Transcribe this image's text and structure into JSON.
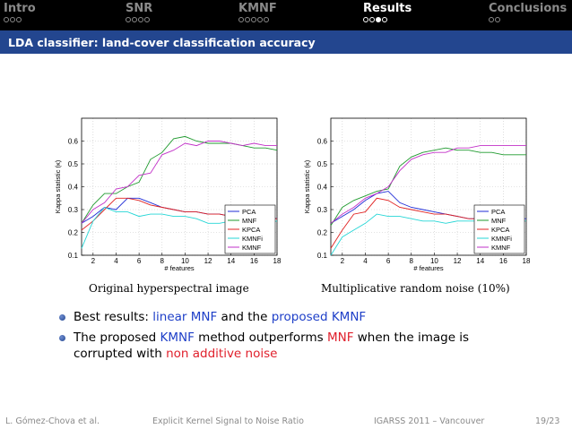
{
  "nav": {
    "sections": [
      {
        "label": "Intro",
        "dots": 3,
        "filled": -1,
        "active": false
      },
      {
        "label": "SNR",
        "dots": 4,
        "filled": -1,
        "active": false
      },
      {
        "label": "KMNF",
        "dots": 5,
        "filled": -1,
        "active": false
      },
      {
        "label": "Results",
        "dots": 4,
        "filled": 2,
        "active": true
      },
      {
        "label": "Conclusions",
        "dots": 2,
        "filled": -1,
        "active": false
      }
    ]
  },
  "slide": {
    "title": "LDA classifier: land-cover classification accuracy"
  },
  "colors": {
    "PCA": "#1f2bd6",
    "MNF": "#1f9a2e",
    "KPCA": "#e02020",
    "KMNFi": "#25d6d6",
    "KMNF": "#c231c8"
  },
  "chart_data": [
    {
      "type": "line",
      "ylabel": "Kappa statistic (κ)",
      "xlabel": "# features",
      "xlim": [
        1,
        18
      ],
      "ylim": [
        0.1,
        0.7
      ],
      "xticks": [
        2,
        4,
        6,
        8,
        10,
        12,
        14,
        16,
        18
      ],
      "yticks": [
        0.1,
        0.2,
        0.3,
        0.4,
        0.5,
        0.6
      ],
      "grid": true,
      "legend_position": "bottom-right",
      "x": [
        1,
        2,
        3,
        4,
        5,
        6,
        7,
        8,
        9,
        10,
        11,
        12,
        13,
        14,
        15,
        16,
        17,
        18
      ],
      "series": [
        {
          "name": "PCA",
          "values": [
            0.24,
            0.27,
            0.31,
            0.3,
            0.35,
            0.35,
            0.33,
            0.31,
            0.3,
            0.29,
            0.29,
            0.28,
            0.28,
            0.27,
            0.27,
            0.27,
            0.27,
            0.26
          ]
        },
        {
          "name": "MNF",
          "values": [
            0.24,
            0.32,
            0.37,
            0.37,
            0.4,
            0.42,
            0.52,
            0.55,
            0.61,
            0.62,
            0.6,
            0.59,
            0.59,
            0.59,
            0.58,
            0.57,
            0.57,
            0.56
          ]
        },
        {
          "name": "KPCA",
          "values": [
            0.21,
            0.25,
            0.3,
            0.35,
            0.35,
            0.34,
            0.32,
            0.31,
            0.3,
            0.29,
            0.29,
            0.28,
            0.28,
            0.27,
            0.27,
            0.27,
            0.26,
            0.26
          ]
        },
        {
          "name": "KMNFi",
          "values": [
            0.13,
            0.25,
            0.31,
            0.29,
            0.29,
            0.27,
            0.28,
            0.28,
            0.27,
            0.27,
            0.26,
            0.24,
            0.24,
            0.25,
            0.25,
            0.25,
            0.24,
            0.25
          ]
        },
        {
          "name": "KMNF",
          "values": [
            0.24,
            0.3,
            0.33,
            0.39,
            0.4,
            0.45,
            0.46,
            0.54,
            0.56,
            0.59,
            0.58,
            0.6,
            0.6,
            0.59,
            0.58,
            0.59,
            0.58,
            0.58
          ]
        }
      ]
    },
    {
      "type": "line",
      "ylabel": "Kappa statistic (κ)",
      "xlabel": "# features",
      "xlim": [
        1,
        18
      ],
      "ylim": [
        0.1,
        0.7
      ],
      "xticks": [
        2,
        4,
        6,
        8,
        10,
        12,
        14,
        16,
        18
      ],
      "yticks": [
        0.1,
        0.2,
        0.3,
        0.4,
        0.5,
        0.6
      ],
      "grid": true,
      "legend_position": "bottom-right",
      "x": [
        1,
        2,
        3,
        4,
        5,
        6,
        7,
        8,
        9,
        10,
        11,
        12,
        13,
        14,
        15,
        16,
        17,
        18
      ],
      "series": [
        {
          "name": "PCA",
          "values": [
            0.24,
            0.27,
            0.3,
            0.34,
            0.37,
            0.38,
            0.33,
            0.31,
            0.3,
            0.29,
            0.28,
            0.27,
            0.26,
            0.26,
            0.26,
            0.26,
            0.26,
            0.26
          ]
        },
        {
          "name": "MNF",
          "values": [
            0.23,
            0.31,
            0.34,
            0.36,
            0.38,
            0.39,
            0.49,
            0.53,
            0.55,
            0.56,
            0.57,
            0.56,
            0.56,
            0.55,
            0.55,
            0.54,
            0.54,
            0.54
          ]
        },
        {
          "name": "KPCA",
          "values": [
            0.13,
            0.21,
            0.28,
            0.29,
            0.35,
            0.34,
            0.31,
            0.3,
            0.29,
            0.28,
            0.28,
            0.27,
            0.26,
            0.26,
            0.26,
            0.25,
            0.25,
            0.25
          ]
        },
        {
          "name": "KMNFi",
          "values": [
            0.1,
            0.18,
            0.21,
            0.24,
            0.28,
            0.27,
            0.27,
            0.26,
            0.25,
            0.25,
            0.24,
            0.25,
            0.25,
            0.25,
            0.25,
            0.25,
            0.25,
            0.25
          ]
        },
        {
          "name": "KMNF",
          "values": [
            0.24,
            0.28,
            0.31,
            0.35,
            0.37,
            0.4,
            0.47,
            0.52,
            0.54,
            0.55,
            0.55,
            0.57,
            0.57,
            0.58,
            0.58,
            0.58,
            0.58,
            0.58
          ]
        }
      ]
    }
  ],
  "captions": [
    "Original hyperspectral image",
    "Multiplicative random noise (10%)"
  ],
  "bullets": [
    {
      "parts": [
        {
          "text": "Best results: ",
          "style": "plain"
        },
        {
          "text": "linear MNF",
          "style": "blue"
        },
        {
          "text": " and the ",
          "style": "plain"
        },
        {
          "text": "proposed KMNF",
          "style": "blue"
        }
      ]
    },
    {
      "parts": [
        {
          "text": "The proposed ",
          "style": "plain"
        },
        {
          "text": "KMNF",
          "style": "blue"
        },
        {
          "text": " method outperforms ",
          "style": "plain"
        },
        {
          "text": "MNF",
          "style": "red"
        },
        {
          "text": " when the image is corrupted with ",
          "style": "plain"
        },
        {
          "text": "non additive noise",
          "style": "red"
        }
      ]
    }
  ],
  "footer": {
    "author": "L. Gómez-Chova et al.",
    "talk_title": "Explicit Kernel Signal to Noise Ratio",
    "conference": "IGARSS 2011 – Vancouver",
    "page": "19/23"
  }
}
